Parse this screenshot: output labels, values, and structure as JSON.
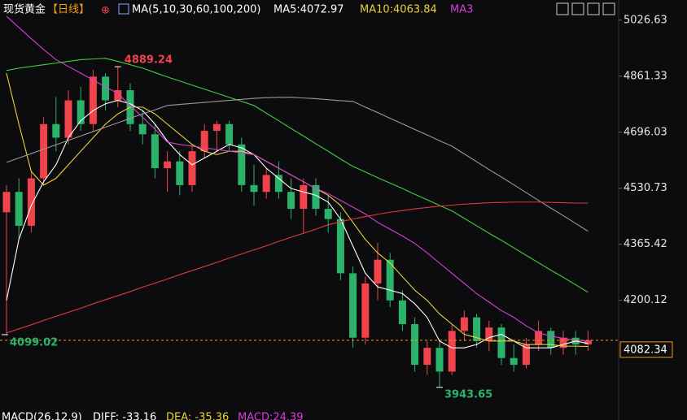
{
  "header": {
    "title": "现货黄金",
    "period": "【日线】",
    "ma_label": "MA(5,10,30,60,100,200)",
    "ma5": "MA5:4072.97",
    "ma10": "MA10:4063.84",
    "ma30": "MA3"
  },
  "footer": {
    "macd": "MACD(26,12,9)",
    "diff": "DIFF: -33.16",
    "dea": "DEA: -35.36",
    "hist": "MACD:24.39"
  },
  "chart_data": {
    "type": "candlestick",
    "open": [
      4460,
      4520,
      4420,
      4560,
      4720,
      4680,
      4790,
      4720,
      4860,
      4790,
      4820,
      4720,
      4690,
      4590,
      4610,
      4540,
      4640,
      4700,
      4720,
      4660,
      4540,
      4520,
      4570,
      4520,
      4470,
      4540,
      4470,
      4440,
      4280,
      4090,
      4250,
      4320,
      4200,
      4130,
      4010,
      4060,
      3990,
      4110,
      4150,
      4080,
      4120,
      4030,
      4010,
      4070,
      4110,
      4060,
      4090,
      4070
    ],
    "high": [
      4540,
      4560,
      4580,
      4740,
      4800,
      4820,
      4830,
      4880,
      4870,
      4889.24,
      4840,
      4760,
      4720,
      4640,
      4640,
      4660,
      4720,
      4730,
      4730,
      4680,
      4600,
      4590,
      4610,
      4560,
      4560,
      4560,
      4510,
      4460,
      4300,
      4270,
      4370,
      4340,
      4230,
      4150,
      4080,
      4080,
      4130,
      4170,
      4160,
      4140,
      4130,
      4070,
      4090,
      4140,
      4120,
      4110,
      4110,
      4110
    ],
    "low": [
      4099.02,
      4380,
      4400,
      4540,
      4640,
      4660,
      4700,
      4700,
      4760,
      4770,
      4700,
      4660,
      4560,
      4520,
      4510,
      4520,
      4620,
      4640,
      4640,
      4520,
      4480,
      4500,
      4500,
      4440,
      4400,
      4450,
      4400,
      4260,
      4060,
      4070,
      4200,
      4180,
      4110,
      3990,
      3980,
      3943.65,
      3980,
      4080,
      4060,
      4050,
      4010,
      3990,
      4000,
      4050,
      4040,
      4040,
      4040,
      4050
    ],
    "close": [
      4520,
      4420,
      4560,
      4720,
      4680,
      4790,
      4720,
      4860,
      4790,
      4820,
      4720,
      4690,
      4590,
      4610,
      4540,
      4640,
      4700,
      4720,
      4660,
      4540,
      4520,
      4570,
      4520,
      4470,
      4540,
      4470,
      4440,
      4280,
      4090,
      4250,
      4320,
      4200,
      4130,
      4010,
      4060,
      3990,
      4110,
      4150,
      4080,
      4120,
      4030,
      4010,
      4070,
      4110,
      4060,
      4090,
      4070,
      4082.34
    ],
    "up_color": "#f0434b",
    "down_color": "#2bb36b",
    "ma_series": [
      {
        "color": "#ffffff",
        "values": [
          4200,
          4380,
          4480,
          4550,
          4600,
          4680,
          4730,
          4760,
          4780,
          4790,
          4780,
          4760,
          4720,
          4670,
          4630,
          4600,
          4620,
          4640,
          4660,
          4650,
          4630,
          4590,
          4560,
          4530,
          4520,
          4510,
          4490,
          4440,
          4360,
          4280,
          4240,
          4230,
          4220,
          4190,
          4150,
          4080,
          4060,
          4060,
          4070,
          4090,
          4100,
          4080,
          4060,
          4060,
          4060,
          4070,
          4080,
          4072.97
        ]
      },
      {
        "color": "#e8d23a",
        "values": [
          4870,
          4720,
          4580,
          4540,
          4560,
          4600,
          4640,
          4680,
          4720,
          4750,
          4770,
          4770,
          4750,
          4720,
          4690,
          4660,
          4640,
          4630,
          4640,
          4640,
          4630,
          4610,
          4590,
          4570,
          4550,
          4530,
          4510,
          4480,
          4430,
          4380,
          4340,
          4310,
          4270,
          4230,
          4200,
          4160,
          4130,
          4100,
          4090,
          4080,
          4080,
          4080,
          4070,
          4070,
          4070,
          4065,
          4065,
          4063.84
        ]
      },
      {
        "color": "#d63fd6",
        "values": [
          5038,
          5005,
          4972,
          4940,
          4910,
          4890,
          4870,
          4850,
          4830,
          4810,
          4775,
          4740,
          4705,
          4667,
          4660,
          4655,
          4650,
          4645,
          4640,
          4635,
          4630,
          4610,
          4590,
          4570,
          4550,
          4530,
          4515,
          4495,
          4475,
          4455,
          4430,
          4410,
          4390,
          4368,
          4340,
          4310,
          4280,
          4250,
          4220,
          4195,
          4170,
          4150,
          4125,
          4104,
          4095,
          4088,
          4083,
          4080
        ]
      },
      {
        "color": "#3fcf3f",
        "values": [
          4878,
          4885,
          4890,
          4895,
          4900,
          4905,
          4910,
          4912,
          4914,
          4905,
          4895,
          4885,
          4872,
          4859,
          4847,
          4835,
          4823,
          4811,
          4799,
          4787,
          4775,
          4752,
          4730,
          4707,
          4685,
          4662,
          4640,
          4617,
          4595,
          4579,
          4562,
          4546,
          4530,
          4513,
          4497,
          4480,
          4464,
          4442,
          4420,
          4398,
          4377,
          4355,
          4333,
          4311,
          4289,
          4268,
          4246,
          4224
        ]
      },
      {
        "color": "#9a9a9a",
        "values": [
          4607,
          4620,
          4633,
          4646,
          4659,
          4672,
          4685,
          4698,
          4711,
          4724,
          4737,
          4750,
          4762,
          4775,
          4778,
          4781,
          4784,
          4787,
          4790,
          4793,
          4796,
          4798,
          4799,
          4799,
          4797,
          4795,
          4792,
          4789,
          4787,
          4770,
          4754,
          4737,
          4721,
          4704,
          4688,
          4671,
          4655,
          4632,
          4609,
          4586,
          4564,
          4541,
          4518,
          4495,
          4472,
          4450,
          4427,
          4404
        ]
      },
      {
        "color": "#e03a3a",
        "values": [
          4104,
          4116,
          4128,
          4141,
          4153,
          4165,
          4177,
          4190,
          4202,
          4214,
          4226,
          4239,
          4251,
          4263,
          4276,
          4288,
          4300,
          4312,
          4325,
          4337,
          4349,
          4361,
          4374,
          4386,
          4398,
          4410,
          4423,
          4432,
          4440,
          4447,
          4454,
          4460,
          4465,
          4470,
          4474,
          4478,
          4481,
          4484,
          4486,
          4488,
          4489,
          4490,
          4490,
          4490,
          4489,
          4488,
          4487,
          4487
        ]
      }
    ],
    "ylim": [
      3876,
      5086
    ],
    "yticks": [
      5026.63,
      4861.33,
      4696.03,
      4530.73,
      4365.42,
      4200.12
    ],
    "last_price_color": "#f39c12",
    "high_label_color": "#f0434b",
    "low_label_color": "#2bb36b"
  }
}
